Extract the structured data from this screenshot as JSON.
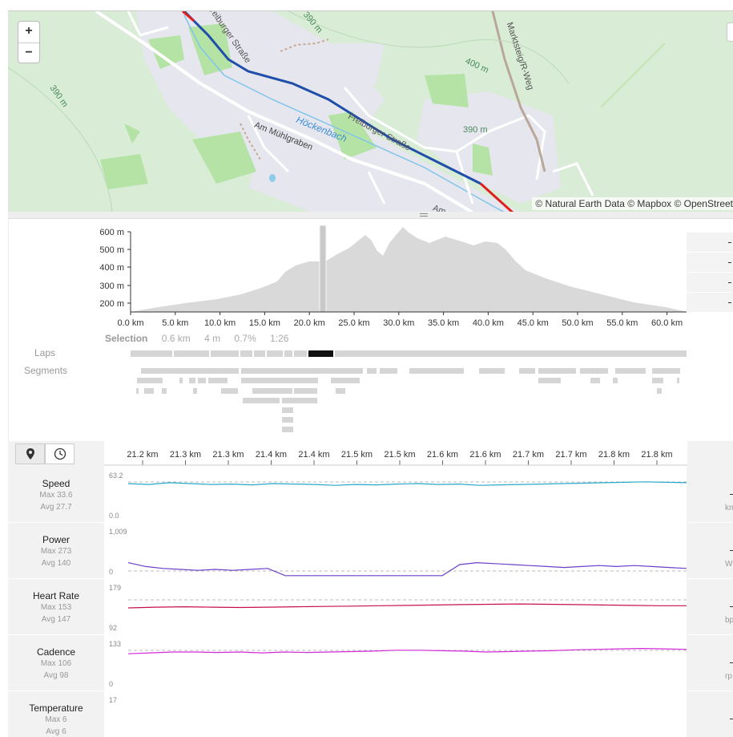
{
  "map": {
    "zoom_in": "+",
    "zoom_out": "−",
    "attribution": "© Natural Earth Data © Mapbox © OpenStreet",
    "labels": {
      "contour_390_a": "390 m",
      "contour_390_b": "390 m",
      "contour_390_c": "390 m",
      "contour_400": "400 m",
      "street_freiburger_1": "Freiburger Straße",
      "street_freiburger_2": "Freiburger Straße",
      "street_muehlgraben": "Am Mühlgraben",
      "stream": "Höckenbach",
      "path_marktsteig": "Marktsteig/R-Weg",
      "street_am": "Am"
    },
    "colors": {
      "route": "#1f4fa8",
      "route_end": "#e02020",
      "stream": "#7fc4ea",
      "park": "#b5e3a5",
      "land": "#d8ecd6",
      "built": "#e6e6ee"
    }
  },
  "overview": {
    "y_ticks": [
      "600 m",
      "500 m",
      "400 m",
      "300 m",
      "200 m"
    ],
    "x_ticks": [
      "0.0 km",
      "5.0 km",
      "10.0 km",
      "15.0 km",
      "20.0 km",
      "25.0 km",
      "30.0 km",
      "35.0 km",
      "40.0 km",
      "45.0 km",
      "50.0 km",
      "55.0 km",
      "60.0 km"
    ],
    "selection": {
      "title": "Selection",
      "distance": "0.6 km",
      "duration": "4 m",
      "grade": "0.7%",
      "time": "1:26"
    },
    "laps_label": "Laps",
    "segments_label": "Segments"
  },
  "detail": {
    "tabs": [
      {
        "icon": "map-pin-icon"
      },
      {
        "icon": "clock-icon"
      }
    ],
    "x_ticks": [
      "21.2 km",
      "21.3 km",
      "21.3 km",
      "21.4 km",
      "21.4 km",
      "21.5 km",
      "21.5 km",
      "21.6 km",
      "21.6 km",
      "21.7 km",
      "21.7 km",
      "21.8 km",
      "21.8 km"
    ],
    "metrics": [
      {
        "name": "Speed",
        "max": "Max 33.6",
        "avg": "Avg 27.7",
        "ymax": "63.2",
        "ymin": "0.0",
        "unit": "km",
        "color": "#2aa7c9"
      },
      {
        "name": "Power",
        "max": "Max 273",
        "avg": "Avg 140",
        "ymax": "1,009",
        "ymin": "0",
        "unit": "W",
        "color": "#6a3fc9"
      },
      {
        "name": "Heart Rate",
        "max": "Max 153",
        "avg": "Avg 147",
        "ymax": "179",
        "ymin": "92",
        "unit": "bp",
        "color": "#c8104a"
      },
      {
        "name": "Cadence",
        "max": "Max 106",
        "avg": "Avg 98",
        "ymax": "133",
        "ymin": "0",
        "unit": "rp",
        "color": "#d22ad8"
      },
      {
        "name": "Temperature",
        "max": "Max 6",
        "avg": "Avg 6",
        "ymax": "17",
        "ymin": "",
        "unit": "",
        "color": "#888888"
      }
    ]
  }
}
